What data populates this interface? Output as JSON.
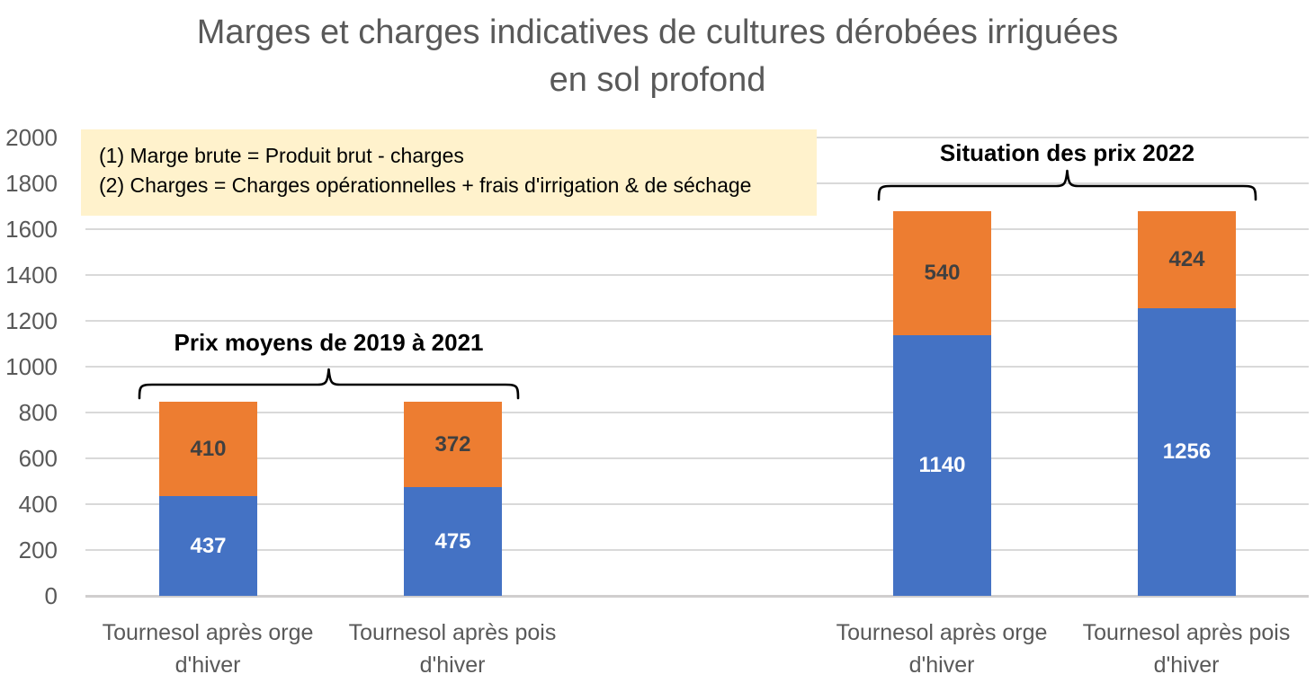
{
  "title": {
    "line1": "Marges et charges indicatives de cultures dérobées irriguées",
    "line2": "en sol profond"
  },
  "annotation": {
    "line1": "(1) Marge brute = Produit brut - charges",
    "line2": "(2) Charges = Charges opérationnelles + frais d'irrigation & de séchage",
    "background": "#FFF2CC"
  },
  "chart_data": {
    "type": "bar",
    "stacked": true,
    "title": "Marges et charges indicatives de cultures dérobées irriguées en sol profond",
    "categories": [
      "Tournesol après orge d'hiver",
      "Tournesol après pois d'hiver",
      "Tournesol après orge d'hiver",
      "Tournesol après pois d'hiver"
    ],
    "series": [
      {
        "key": "blue-bottom-segment",
        "color": "#4472C4",
        "label_color": "#FFFFFF",
        "values": [
          437,
          475,
          1140,
          1256
        ]
      },
      {
        "key": "orange-top-segment",
        "color": "#ED7D31",
        "label_color": "#404040",
        "values": [
          410,
          372,
          540,
          424
        ]
      }
    ],
    "stack_totals": [
      847,
      847,
      1680,
      1680
    ],
    "groups": [
      {
        "label": "Prix moyens de 2019 à 2021",
        "categories": [
          0,
          1
        ]
      },
      {
        "label": "Situation des prix 2022",
        "categories": [
          2,
          3
        ]
      }
    ],
    "ylim": [
      0,
      2000
    ],
    "yticks": [
      0,
      200,
      400,
      600,
      800,
      1000,
      1200,
      1400,
      1600,
      1800,
      2000
    ],
    "xlabel": "",
    "ylabel": "",
    "grid": true,
    "legend": "none",
    "slots": [
      0,
      1,
      3,
      4
    ],
    "num_slots": 5,
    "text_color": "#595959",
    "gridline_color": "#D9D9D9"
  }
}
